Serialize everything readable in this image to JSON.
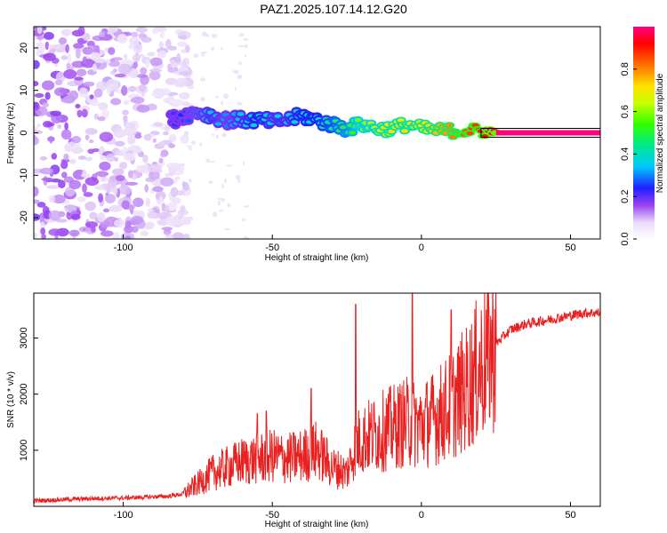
{
  "title": "PAZ1.2025.107.14.12.G20",
  "chart_data": [
    {
      "type": "heatmap",
      "xlabel": "Height of straight line (km)",
      "ylabel": "Frequency (Hz)",
      "xlim": [
        -130,
        60
      ],
      "ylim": [
        -25,
        25
      ],
      "xticks": [
        -100,
        -50,
        0,
        50
      ],
      "xtick_labels": [
        "-100",
        "-50",
        "0",
        "50"
      ],
      "yticks": [
        -20,
        -10,
        0,
        10,
        20
      ],
      "ytick_labels": [
        "-20",
        "-10",
        "0",
        "10",
        "20"
      ],
      "colorbar": {
        "label": "Normalized spectral amplitude",
        "range": [
          0,
          1
        ],
        "ticks": [
          0,
          0.2,
          0.4,
          0.6,
          0.8
        ],
        "tick_labels": [
          "0.0",
          "0.2",
          "0.4",
          "0.6",
          "0.8"
        ]
      },
      "ridge": {
        "x": [
          -84,
          -80,
          -75,
          -70,
          -65,
          -60,
          -55,
          -50,
          -45,
          -40,
          -35,
          -30,
          -25,
          -20,
          -15,
          -10,
          -5,
          0,
          5,
          10,
          15,
          20,
          25,
          30,
          40,
          50,
          60
        ],
        "freq": [
          3,
          4,
          5,
          4,
          3,
          3,
          3,
          2.5,
          3,
          4,
          3,
          2,
          1,
          2,
          1,
          1,
          2,
          1,
          0.5,
          0.5,
          0.5,
          0.5,
          0,
          0,
          0,
          0,
          0
        ],
        "amplitude": [
          0.2,
          0.25,
          0.3,
          0.35,
          0.3,
          0.35,
          0.4,
          0.35,
          0.35,
          0.4,
          0.4,
          0.45,
          0.5,
          0.6,
          0.65,
          0.7,
          0.7,
          0.7,
          0.75,
          0.8,
          0.85,
          0.9,
          0.95,
          0.97,
          0.98,
          0.99,
          1.0
        ]
      }
    },
    {
      "type": "line",
      "xlabel": "Height of straight line (km)",
      "ylabel": "SNR (10 * v/v)",
      "xlim": [
        -130,
        60
      ],
      "ylim": [
        0,
        3800
      ],
      "xticks": [
        -100,
        -50,
        0,
        50
      ],
      "xtick_labels": [
        "-100",
        "-50",
        "0",
        "50"
      ],
      "yticks": [
        1000,
        2000,
        3000
      ],
      "ytick_labels": [
        "1000",
        "2000",
        "3000"
      ],
      "color": "#e82020",
      "series": [
        {
          "x": [
            -130,
            -120,
            -110,
            -100,
            -90,
            -85,
            -80,
            -75,
            -70,
            -65,
            -60,
            -55,
            -50,
            -45,
            -40,
            -35,
            -30,
            -25,
            -22,
            -20,
            -15,
            -10,
            -5,
            0,
            5,
            10,
            15,
            20,
            25,
            30,
            35,
            40,
            45,
            50,
            55,
            60
          ],
          "y": [
            100,
            120,
            140,
            150,
            170,
            180,
            220,
            400,
            600,
            700,
            800,
            850,
            900,
            850,
            900,
            1000,
            700,
            600,
            1100,
            1200,
            1300,
            1400,
            1500,
            1450,
            1600,
            1800,
            2100,
            2500,
            2900,
            3150,
            3250,
            3300,
            3350,
            3400,
            3450,
            3450
          ]
        }
      ],
      "spikes": [
        {
          "x": -22,
          "y": 3600
        },
        {
          "x": -3,
          "y": 3800
        },
        {
          "x": 10,
          "y": 3500
        },
        {
          "x": -37,
          "y": 2100
        },
        {
          "x": -52,
          "y": 1700
        },
        {
          "x": -55,
          "y": 1650
        }
      ]
    }
  ]
}
